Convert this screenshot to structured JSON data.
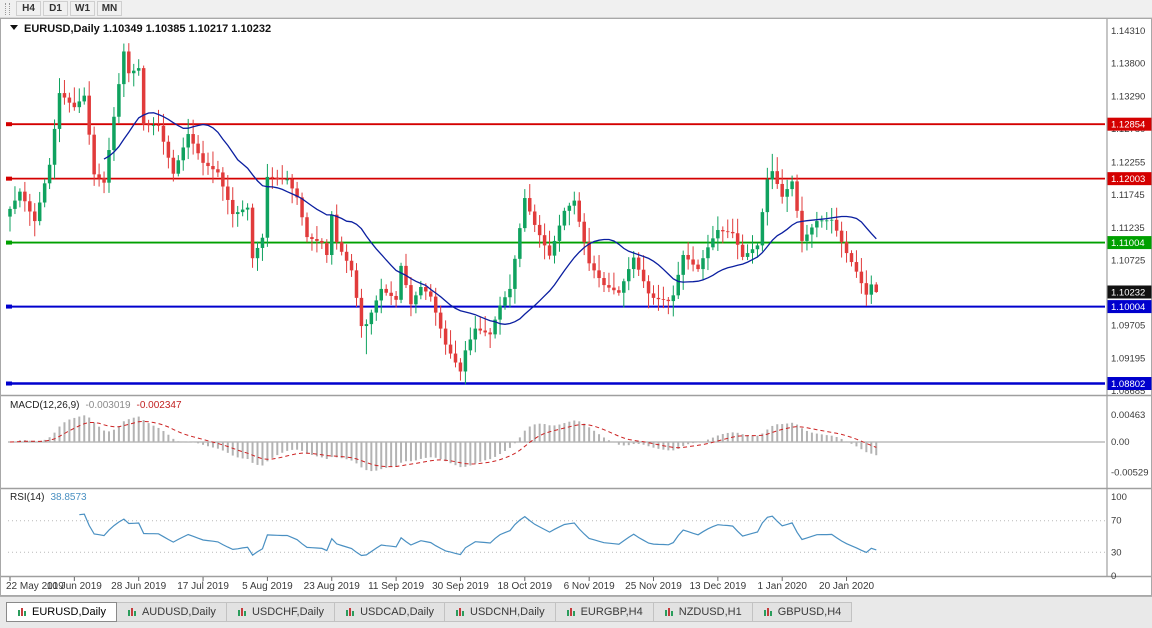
{
  "toolbar": {
    "timeframes": [
      "H4",
      "D1",
      "W1",
      "MN"
    ]
  },
  "header": {
    "title_line": "EURUSD,Daily 1.10349 1.10385 1.10217 1.10232"
  },
  "indicators_panel": {
    "macd_name": "MACD(12,26,9)",
    "macd_main": "-0.003019",
    "macd_signal": "-0.002347",
    "rsi_name": "RSI(14)",
    "rsi_value": "38.8573"
  },
  "tabs": [
    {
      "label": "EURUSD,Daily",
      "active": true
    },
    {
      "label": "AUDUSD,Daily",
      "active": false
    },
    {
      "label": "USDCHF,Daily",
      "active": false
    },
    {
      "label": "USDCAD,Daily",
      "active": false
    },
    {
      "label": "USDCNH,Daily",
      "active": false
    },
    {
      "label": "EURGBP,H4",
      "active": false
    },
    {
      "label": "NZDUSD,H1",
      "active": false
    },
    {
      "label": "GBPUSD,H4",
      "active": false
    }
  ],
  "chart_data": {
    "type": "candlestick",
    "symbol": "EURUSD",
    "period": "Daily",
    "y_ticks": [
      "1.14310",
      "1.13800",
      "1.13290",
      "1.12780",
      "1.12255",
      "1.11745",
      "1.11235",
      "1.10725",
      "1.09705",
      "1.09195",
      "1.08685"
    ],
    "hlines": [
      {
        "label": "1.12854",
        "color": "#d40000",
        "width": 1.8
      },
      {
        "label": "1.12003",
        "color": "#d40000",
        "width": 1.8
      },
      {
        "label": "1.11004",
        "color": "#00a000",
        "width": 1.8
      },
      {
        "label": "1.10004",
        "color": "#0000cd",
        "width": 2
      },
      {
        "label": "1.08802",
        "color": "#0000cd",
        "width": 2.4
      }
    ],
    "current_price": {
      "label": "1.10232",
      "color": "#111111"
    },
    "macd_ticks": [
      "0.00463",
      "0.00",
      "-0.00529"
    ],
    "rsi_ticks": [
      "100",
      "70",
      "30",
      "0"
    ],
    "rsi_levels": [
      70,
      30
    ],
    "x_labels": [
      "22 May 2019",
      "10 Jun 2019",
      "28 Jun 2019",
      "17 Jul 2019",
      "5 Aug 2019",
      "23 Aug 2019",
      "11 Sep 2019",
      "30 Sep 2019",
      "18 Oct 2019",
      "6 Nov 2019",
      "25 Nov 2019",
      "13 Dec 2019",
      "1 Jan 2020",
      "20 Jan 2020"
    ],
    "colors": {
      "up": "#0fa25f",
      "down": "#e13b3b",
      "ma": "#0b1fa0",
      "macd_hist": "#b3b3b3",
      "macd_signal": "#cc2222",
      "rsi": "#4a90c2"
    },
    "indicators": {
      "ma_period": 20,
      "macd": [
        12,
        26,
        9
      ],
      "rsi_period": 14
    },
    "closes": [
      1.1153,
      1.1166,
      1.118,
      1.1165,
      1.1149,
      1.1134,
      1.1163,
      1.1193,
      1.1222,
      1.1278,
      1.1334,
      1.1327,
      1.1319,
      1.1312,
      1.1321,
      1.133,
      1.1269,
      1.1207,
      1.1201,
      1.1194,
      1.1245,
      1.1297,
      1.1348,
      1.1399,
      1.1365,
      1.1369,
      1.1373,
      1.1285,
      1.1284,
      1.1284,
      1.1283,
      1.1258,
      1.1233,
      1.1208,
      1.1229,
      1.1249,
      1.127,
      1.1255,
      1.124,
      1.1225,
      1.122,
      1.1215,
      1.121,
      1.1188,
      1.1167,
      1.1145,
      1.1148,
      1.1152,
      1.1155,
      1.1076,
      1.1092,
      1.1108,
      1.1203,
      1.1202,
      1.12,
      1.1199,
      1.1199,
      1.1185,
      1.1171,
      1.114,
      1.1109,
      1.1106,
      1.1103,
      1.11,
      1.1081,
      1.1144,
      1.1101,
      1.1086,
      1.1072,
      1.1057,
      1.1014,
      1.097,
      1.0973,
      1.0991,
      1.101,
      1.1028,
      1.1022,
      1.1017,
      1.1011,
      1.1064,
      1.1034,
      1.1004,
      1.1018,
      1.1031,
      1.1024,
      1.1016,
      1.0991,
      1.0966,
      1.0941,
      1.0927,
      1.0913,
      1.0899,
      1.0932,
      1.0949,
      1.0966,
      1.0963,
      1.096,
      1.0957,
      1.098,
      1.1002,
      1.1015,
      1.1028,
      1.1075,
      1.1123,
      1.117,
      1.1149,
      1.1128,
      1.1112,
      1.1096,
      1.108,
      1.1103,
      1.1127,
      1.115,
      1.1158,
      1.1166,
      1.1133,
      1.1101,
      1.1068,
      1.1057,
      1.1045,
      1.1034,
      1.103,
      1.1026,
      1.1022,
      1.104,
      1.1059,
      1.1077,
      1.1058,
      1.104,
      1.1021,
      1.1014,
      1.1012,
      1.1011,
      1.1009,
      1.1018,
      1.105,
      1.1081,
      1.1074,
      1.1066,
      1.1059,
      1.1076,
      1.1093,
      1.1107,
      1.112,
      1.1118,
      1.1117,
      1.1115,
      1.1097,
      1.1078,
      1.1084,
      1.109,
      1.1096,
      1.1148,
      1.1199,
      1.1212,
      1.1192,
      1.1172,
      1.1184,
      1.1196,
      1.115,
      1.1103,
      1.1113,
      1.1124,
      1.1134,
      1.1135,
      1.1135,
      1.1136,
      1.1119,
      1.1101,
      1.1084,
      1.107,
      1.1055,
      1.1037,
      1.1019,
      1.1035,
      1.10232
    ],
    "overrides": {
      "0": {
        "o": 1.1141
      },
      "24": {
        "h": 1.1412
      },
      "49": {
        "l": 1.1061
      },
      "72": {
        "l": 1.0926
      },
      "92": {
        "l": 1.0879
      },
      "154": {
        "h": 1.1239
      },
      "175": {
        "o": 1.10349,
        "h": 1.10385,
        "l": 1.10217,
        "c": 1.10232
      }
    }
  }
}
